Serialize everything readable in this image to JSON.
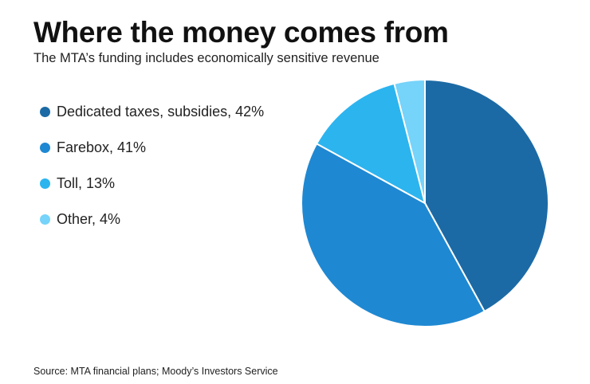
{
  "header": {
    "title": "Where the money comes from",
    "subtitle": "The MTA’s funding includes economically sensitive revenue"
  },
  "chart_data": {
    "type": "pie",
    "slices": [
      {
        "label": "Dedicated taxes, subsidies, 42%",
        "name": "Dedicated taxes, subsidies",
        "value": 42,
        "color": "#1c6aa5"
      },
      {
        "label": "Farebox, 41%",
        "name": "Farebox",
        "value": 41,
        "color": "#1f88d2"
      },
      {
        "label": "Toll, 13%",
        "name": "Toll",
        "value": 13,
        "color": "#2cb4ef"
      },
      {
        "label": "Other, 4%",
        "name": "Other",
        "value": 4,
        "color": "#76d3fa"
      }
    ],
    "legend_placement": "left"
  },
  "footer": {
    "source": "Source: MTA financial plans; Moody’s Investors Service"
  }
}
